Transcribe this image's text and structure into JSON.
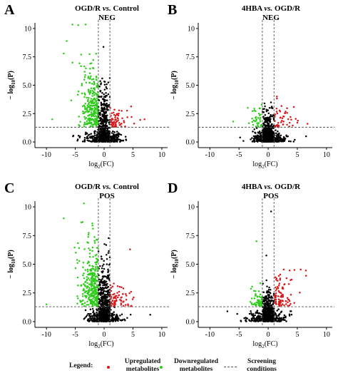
{
  "colors": {
    "up": "#d7191c",
    "down": "#2ecc1a",
    "neutral": "#000000",
    "threshold": "#555555"
  },
  "chart_data": [
    {
      "type": "scatter",
      "panel_label": "A",
      "title_prefix": "OGD/R",
      "title_vs": "vs.",
      "title_suffix": "Control",
      "subtitle": "NEG",
      "xlabel": "log2(FC)",
      "ylabel": "−log10(P)",
      "xlim": [
        -12,
        11
      ],
      "ylim": [
        -0.5,
        10.5
      ],
      "xticks": [
        -10,
        -5,
        0,
        5,
        10
      ],
      "yticks": [
        0.0,
        2.5,
        5.0,
        7.5,
        10
      ],
      "fc_threshold": [
        -1,
        1
      ],
      "p_threshold": 1.3,
      "points": {
        "down": 260,
        "up": 60,
        "neutral": 700
      },
      "notable_points": [
        [
          -5.5,
          10.4
        ],
        [
          -4.5,
          10.3
        ],
        [
          -6.5,
          8.9
        ],
        [
          -7.0,
          7.8
        ],
        [
          -5.5,
          7.0
        ],
        [
          -9.0,
          2.0
        ],
        [
          7.0,
          2.0
        ]
      ]
    },
    {
      "type": "scatter",
      "panel_label": "B",
      "title_prefix": "4HBA",
      "title_vs": "vs.",
      "title_suffix": "OGD/R",
      "subtitle": "NEG",
      "xlabel": "log2(FC)",
      "ylabel": "−log10(P)",
      "xlim": [
        -12,
        11
      ],
      "ylim": [
        -0.5,
        10.5
      ],
      "xticks": [
        -10,
        -5,
        0,
        5,
        10
      ],
      "yticks": [
        0.0,
        2.5,
        5.0,
        7.5,
        10
      ],
      "fc_threshold": [
        -1,
        1
      ],
      "p_threshold": 1.3,
      "points": {
        "down": 35,
        "up": 45,
        "neutral": 700
      },
      "notable_points": [
        [
          -6.0,
          1.8
        ],
        [
          -3.5,
          3.0
        ],
        [
          1.5,
          4.0
        ],
        [
          5.0,
          1.7
        ],
        [
          6.5,
          0.5
        ]
      ]
    },
    {
      "type": "scatter",
      "panel_label": "C",
      "title_prefix": "OGD/R",
      "title_vs": "vs.",
      "title_suffix": "Control",
      "subtitle": "POS",
      "xlabel": "log2(FC)",
      "ylabel": "−log10(P)",
      "xlim": [
        -12,
        11
      ],
      "ylim": [
        -0.5,
        10.5
      ],
      "xticks": [
        -10,
        -5,
        0,
        5,
        10
      ],
      "yticks": [
        0.0,
        2.5,
        5.0,
        7.5,
        10
      ],
      "fc_threshold": [
        -1,
        1
      ],
      "p_threshold": 1.3,
      "points": {
        "down": 300,
        "up": 70,
        "neutral": 750
      },
      "notable_points": [
        [
          -7.0,
          9.0
        ],
        [
          -3.5,
          10.3
        ],
        [
          4.5,
          6.3
        ],
        [
          -10.0,
          1.5
        ],
        [
          8.0,
          0.6
        ]
      ]
    },
    {
      "type": "scatter",
      "panel_label": "D",
      "title_prefix": "4HBA",
      "title_vs": "vs.",
      "title_suffix": "OGD/R",
      "subtitle": "POS",
      "xlabel": "log2(FC)",
      "ylabel": "−log10(P)",
      "xlim": [
        -12,
        11
      ],
      "ylim": [
        -0.5,
        10.5
      ],
      "xticks": [
        -10,
        -5,
        0,
        5,
        10
      ],
      "yticks": [
        0.0,
        2.5,
        5.0,
        7.5,
        10
      ],
      "fc_threshold": [
        -1,
        1
      ],
      "p_threshold": 1.3,
      "points": {
        "down": 50,
        "up": 90,
        "neutral": 700
      },
      "notable_points": [
        [
          -2.0,
          7.0
        ],
        [
          0.5,
          9.6
        ],
        [
          4.5,
          4.5
        ],
        [
          6.5,
          4.0
        ],
        [
          -7.0,
          0.9
        ]
      ]
    }
  ],
  "legend": {
    "title": "Legend:",
    "items": [
      {
        "line1": "Upregulated",
        "line2": "metabolites"
      },
      {
        "line1": "Downregulated",
        "line2": "metabolites"
      },
      {
        "line1": "Screening",
        "line2": "conditions"
      }
    ]
  }
}
